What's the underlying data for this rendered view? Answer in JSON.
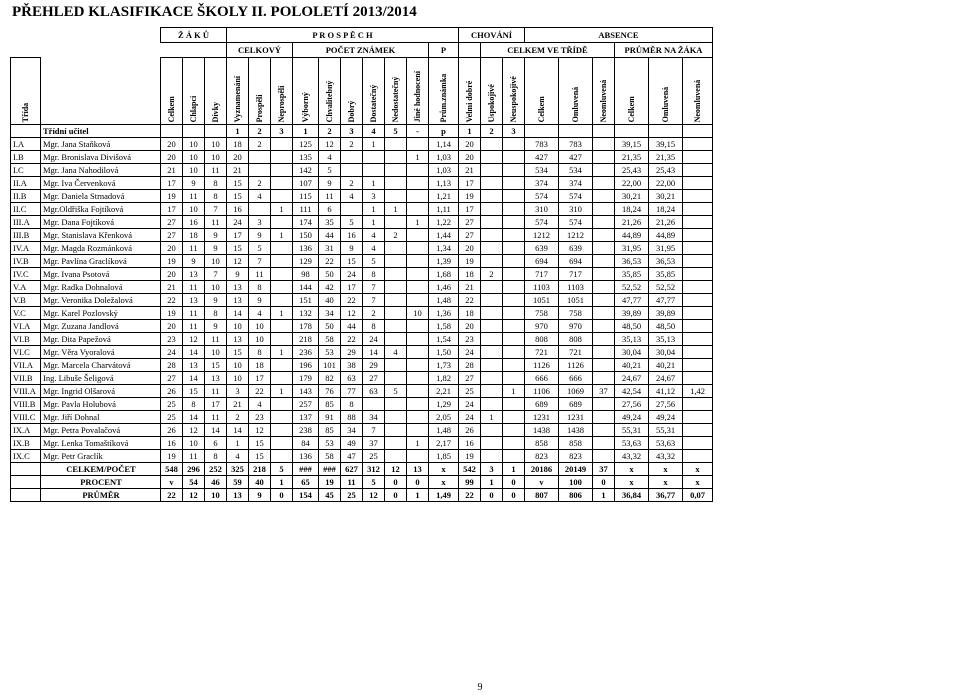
{
  "title": "PŘEHLED KLASIFIKACE ŠKOLY II. POLOLETÍ 2013/2014",
  "header_groups": {
    "zaku": "Ž Á K Ů",
    "prospech": "P R O S P Ě C H",
    "chovani": "CHOVÁNÍ",
    "absence": "ABSENCE",
    "celkovy": "CELKOVÝ",
    "pocet_znamek": "POČET ZNÁMEK",
    "p": "P",
    "celkem_ve_tride": "CELKEM VE TŘÍDĚ",
    "prumer_na_zaka": "PRŮMĚR NA ŽÁKA"
  },
  "rotated": [
    "Třída",
    "",
    "Celkem",
    "Chlapci",
    "Dívky",
    "Vyznamenání",
    "Prospěli",
    "Neprospěli",
    "Výborný",
    "Chvalitebný",
    "Dobrý",
    "Dostatečný",
    "Nedostatečný",
    "Jiné hodnocení",
    "Prům.známka",
    "Velmi dobré",
    "Uspokojivé",
    "Neuspokojivé",
    "Celkem",
    "Omluvená",
    "Neomluvená",
    "Celkem",
    "Omluvená",
    "Neomluvená"
  ],
  "tridni_ucitel": "Třídní učitel",
  "subhdr": [
    "1",
    "2",
    "3",
    "1",
    "2",
    "3",
    "4",
    "5",
    "-",
    "p",
    "1",
    "2",
    "3"
  ],
  "rows": [
    [
      "I.A",
      "Mgr. Jana Staňková",
      "20",
      "10",
      "10",
      "18",
      "2",
      "",
      "125",
      "12",
      "2",
      "1",
      "",
      "",
      "1,14",
      "20",
      "",
      "",
      "783",
      "783",
      "",
      "39,15",
      "39,15",
      ""
    ],
    [
      "I.B",
      "Mgr. Bronislava Divišová",
      "20",
      "10",
      "10",
      "20",
      "",
      "",
      "135",
      "4",
      "",
      "",
      "",
      "1",
      "1,03",
      "20",
      "",
      "",
      "427",
      "427",
      "",
      "21,35",
      "21,35",
      ""
    ],
    [
      "I.C",
      "Mgr. Jana Nahodilová",
      "21",
      "10",
      "11",
      "21",
      "",
      "",
      "142",
      "5",
      "",
      "",
      "",
      "",
      "1,03",
      "21",
      "",
      "",
      "534",
      "534",
      "",
      "25,43",
      "25,43",
      ""
    ],
    [
      "II.A",
      "Mgr. Iva Červenková",
      "17",
      "9",
      "8",
      "15",
      "2",
      "",
      "107",
      "9",
      "2",
      "1",
      "",
      "",
      "1,13",
      "17",
      "",
      "",
      "374",
      "374",
      "",
      "22,00",
      "22,00",
      ""
    ],
    [
      "II.B",
      "Mgr. Daniela Strnadová",
      "19",
      "11",
      "8",
      "15",
      "4",
      "",
      "115",
      "11",
      "4",
      "3",
      "",
      "",
      "1,21",
      "19",
      "",
      "",
      "574",
      "574",
      "",
      "30,21",
      "30,21",
      ""
    ],
    [
      "II.C",
      "Mgr.Oldřiška Fojtíková",
      "17",
      "10",
      "7",
      "16",
      "",
      "1",
      "111",
      "6",
      "",
      "1",
      "1",
      "",
      "1,11",
      "17",
      "",
      "",
      "310",
      "310",
      "",
      "18,24",
      "18,24",
      ""
    ],
    [
      "III.A",
      "Mgr. Dana Fojtíková",
      "27",
      "16",
      "11",
      "24",
      "3",
      "",
      "174",
      "35",
      "5",
      "1",
      "",
      "1",
      "1,22",
      "27",
      "",
      "",
      "574",
      "574",
      "",
      "21,26",
      "21,26",
      ""
    ],
    [
      "III.B",
      "Mgr. Stanislava Křenková",
      "27",
      "18",
      "9",
      "17",
      "9",
      "1",
      "150",
      "44",
      "16",
      "4",
      "2",
      "",
      "1,44",
      "27",
      "",
      "",
      "1212",
      "1212",
      "",
      "44,89",
      "44,89",
      ""
    ],
    [
      "IV.A",
      "Mgr. Magda Rozmánková",
      "20",
      "11",
      "9",
      "15",
      "5",
      "",
      "136",
      "31",
      "9",
      "4",
      "",
      "",
      "1,34",
      "20",
      "",
      "",
      "639",
      "639",
      "",
      "31,95",
      "31,95",
      ""
    ],
    [
      "IV.B",
      "Mgr. Pavlína Graclíková",
      "19",
      "9",
      "10",
      "12",
      "7",
      "",
      "129",
      "22",
      "15",
      "5",
      "",
      "",
      "1,39",
      "19",
      "",
      "",
      "694",
      "694",
      "",
      "36,53",
      "36,53",
      ""
    ],
    [
      "IV.C",
      "Mgr. Ivana Psotová",
      "20",
      "13",
      "7",
      "9",
      "11",
      "",
      "98",
      "50",
      "24",
      "8",
      "",
      "",
      "1,68",
      "18",
      "2",
      "",
      "717",
      "717",
      "",
      "35,85",
      "35,85",
      ""
    ],
    [
      "V.A",
      "Mgr. Radka Dohnalová",
      "21",
      "11",
      "10",
      "13",
      "8",
      "",
      "144",
      "42",
      "17",
      "7",
      "",
      "",
      "1,46",
      "21",
      "",
      "",
      "1103",
      "1103",
      "",
      "52,52",
      "52,52",
      ""
    ],
    [
      "V.B",
      "Mgr. Veronika Doležalová",
      "22",
      "13",
      "9",
      "13",
      "9",
      "",
      "151",
      "40",
      "22",
      "7",
      "",
      "",
      "1,48",
      "22",
      "",
      "",
      "1051",
      "1051",
      "",
      "47,77",
      "47,77",
      ""
    ],
    [
      "V.C",
      "Mgr. Karel Pozlovský",
      "19",
      "11",
      "8",
      "14",
      "4",
      "1",
      "132",
      "34",
      "12",
      "2",
      "",
      "10",
      "1,36",
      "18",
      "",
      "",
      "758",
      "758",
      "",
      "39,89",
      "39,89",
      ""
    ],
    [
      "VI.A",
      "Mgr. Zuzana Jandlová",
      "20",
      "11",
      "9",
      "10",
      "10",
      "",
      "178",
      "50",
      "44",
      "8",
      "",
      "",
      "1,58",
      "20",
      "",
      "",
      "970",
      "970",
      "",
      "48,50",
      "48,50",
      ""
    ],
    [
      "VI.B",
      "Mgr. Dita Papežová",
      "23",
      "12",
      "11",
      "13",
      "10",
      "",
      "218",
      "58",
      "22",
      "24",
      "",
      "",
      "1,54",
      "23",
      "",
      "",
      "808",
      "808",
      "",
      "35,13",
      "35,13",
      ""
    ],
    [
      "VI.C",
      "Mgr. Věra Vyoralová",
      "24",
      "14",
      "10",
      "15",
      "8",
      "1",
      "236",
      "53",
      "29",
      "14",
      "4",
      "",
      "1,50",
      "24",
      "",
      "",
      "721",
      "721",
      "",
      "30,04",
      "30,04",
      ""
    ],
    [
      "VII.A",
      "Mgr. Marcela Charvátová",
      "28",
      "13",
      "15",
      "10",
      "18",
      "",
      "196",
      "101",
      "38",
      "29",
      "",
      "",
      "1,73",
      "28",
      "",
      "",
      "1126",
      "1126",
      "",
      "40,21",
      "40,21",
      ""
    ],
    [
      "VII.B",
      "Ing. Libuše Šeligová",
      "27",
      "14",
      "13",
      "10",
      "17",
      "",
      "179",
      "82",
      "63",
      "27",
      "",
      "",
      "1,82",
      "27",
      "",
      "",
      "666",
      "666",
      "",
      "24,67",
      "24,67",
      ""
    ],
    [
      "VIII.A",
      "Mgr. Ingrid Olšarová",
      "26",
      "15",
      "11",
      "3",
      "22",
      "1",
      "143",
      "76",
      "77",
      "63",
      "5",
      "",
      "2,21",
      "25",
      "",
      "1",
      "1106",
      "1069",
      "37",
      "42,54",
      "41,12",
      "1,42"
    ],
    [
      "VIII.B",
      "Mgr. Pavla Holubová",
      "25",
      "8",
      "17",
      "21",
      "4",
      "",
      "257",
      "85",
      "8",
      "",
      "",
      "",
      "1,29",
      "24",
      "",
      "",
      "689",
      "689",
      "",
      "27,56",
      "27,56",
      ""
    ],
    [
      "VIII.C",
      "Mgr. Jiří Dohnal",
      "25",
      "14",
      "11",
      "2",
      "23",
      "",
      "137",
      "91",
      "88",
      "34",
      "",
      "",
      "2,05",
      "24",
      "1",
      "",
      "1231",
      "1231",
      "",
      "49,24",
      "49,24",
      ""
    ],
    [
      "IX.A",
      "Mgr. Petra Povalačová",
      "26",
      "12",
      "14",
      "14",
      "12",
      "",
      "238",
      "85",
      "34",
      "7",
      "",
      "",
      "1,48",
      "26",
      "",
      "",
      "1438",
      "1438",
      "",
      "55,31",
      "55,31",
      ""
    ],
    [
      "IX.B",
      "Mgr. Lenka Tomaštíková",
      "16",
      "10",
      "6",
      "1",
      "15",
      "",
      "84",
      "53",
      "49",
      "37",
      "",
      "1",
      "2,17",
      "16",
      "",
      "",
      "858",
      "858",
      "",
      "53,63",
      "53,63",
      ""
    ],
    [
      "IX.C",
      "Mgr. Petr Graclík",
      "19",
      "11",
      "8",
      "4",
      "15",
      "",
      "136",
      "58",
      "47",
      "25",
      "",
      "",
      "1,85",
      "19",
      "",
      "",
      "823",
      "823",
      "",
      "43,32",
      "43,32",
      ""
    ]
  ],
  "footer": [
    [
      "",
      "CELKEM/POČET",
      "548",
      "296",
      "252",
      "325",
      "218",
      "5",
      "###",
      "###",
      "627",
      "312",
      "12",
      "13",
      "x",
      "542",
      "3",
      "1",
      "20186",
      "20149",
      "37",
      "x",
      "x",
      "x"
    ],
    [
      "",
      "PROCENT",
      "v",
      "54",
      "46",
      "59",
      "40",
      "1",
      "65",
      "19",
      "11",
      "5",
      "0",
      "0",
      "x",
      "99",
      "1",
      "0",
      "v",
      "100",
      "0",
      "x",
      "x",
      "x"
    ],
    [
      "",
      "PRŮMĚR",
      "22",
      "12",
      "10",
      "13",
      "9",
      "0",
      "154",
      "45",
      "25",
      "12",
      "0",
      "1",
      "1,49",
      "22",
      "0",
      "0",
      "807",
      "806",
      "1",
      "36,84",
      "36,77",
      "0,07"
    ]
  ],
  "pagenum": "9",
  "col_widths": [
    "30",
    "120",
    "22",
    "22",
    "22",
    "22",
    "22",
    "22",
    "26",
    "22",
    "22",
    "22",
    "22",
    "22",
    "30",
    "22",
    "22",
    "22",
    "34",
    "34",
    "22",
    "34",
    "34",
    "30"
  ]
}
